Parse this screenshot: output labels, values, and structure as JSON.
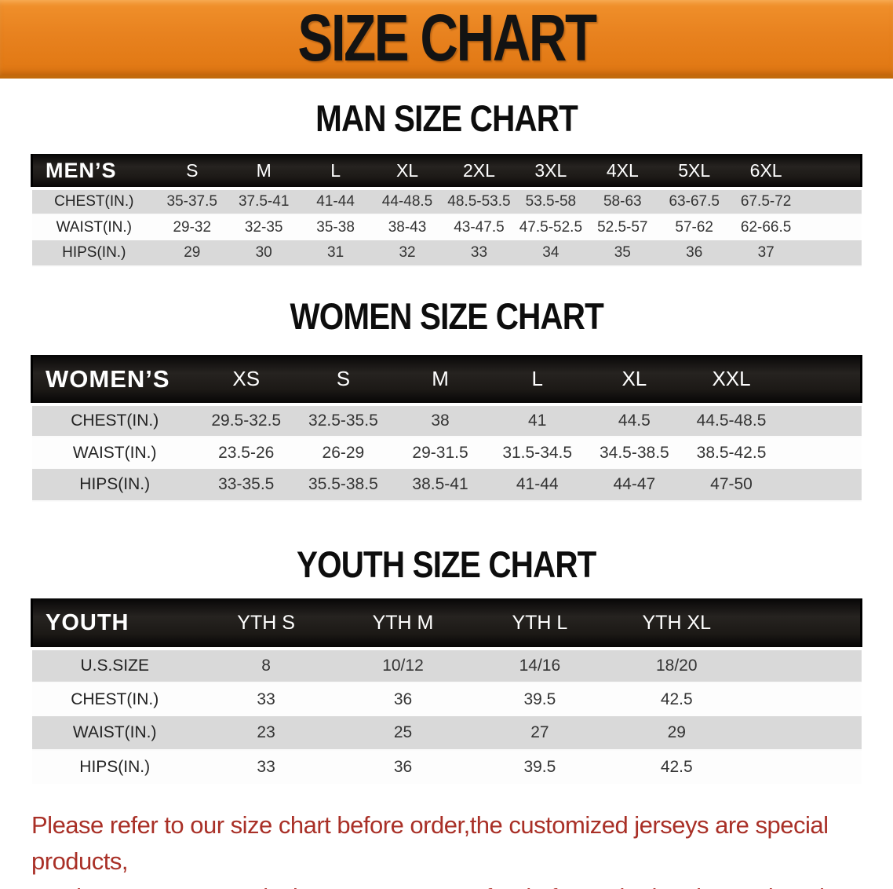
{
  "banner": {
    "title": "SIZE CHART",
    "bg_color": "#e8821f",
    "border_color": "#c36a0c",
    "text_color": "#131313"
  },
  "sections": [
    {
      "id": "men",
      "title": "MAN SIZE CHART",
      "corner_label": "MEN’S",
      "columns": [
        "S",
        "M",
        "L",
        "XL",
        "2XL",
        "3XL",
        "4XL",
        "5XL",
        "6XL"
      ],
      "rows": [
        {
          "label": "CHEST(IN.)",
          "values": [
            "35-37.5",
            "37.5-41",
            "41-44",
            "44-48.5",
            "48.5-53.5",
            "53.5-58",
            "58-63",
            "63-67.5",
            "67.5-72"
          ]
        },
        {
          "label": "WAIST(IN.)",
          "values": [
            "29-32",
            "32-35",
            "35-38",
            "38-43",
            "43-47.5",
            "47.5-52.5",
            "52.5-57",
            "57-62",
            "62-66.5"
          ]
        },
        {
          "label": "HIPS(IN.)",
          "values": [
            "29",
            "30",
            "31",
            "32",
            "33",
            "34",
            "35",
            "36",
            "37"
          ]
        }
      ]
    },
    {
      "id": "women",
      "title": "WOMEN SIZE CHART",
      "corner_label": "WOMEN’S",
      "columns": [
        "XS",
        "S",
        "M",
        "L",
        "XL",
        "XXL"
      ],
      "rows": [
        {
          "label": "CHEST(IN.)",
          "values": [
            "29.5-32.5",
            "32.5-35.5",
            "38",
            "41",
            "44.5",
            "44.5-48.5"
          ]
        },
        {
          "label": "WAIST(IN.)",
          "values": [
            "23.5-26",
            "26-29",
            "29-31.5",
            "31.5-34.5",
            "34.5-38.5",
            "38.5-42.5"
          ]
        },
        {
          "label": "HIPS(IN.)",
          "values": [
            "33-35.5",
            "35.5-38.5",
            "38.5-41",
            "41-44",
            "44-47",
            "47-50"
          ]
        }
      ]
    },
    {
      "id": "youth",
      "title": "YOUTH SIZE CHART",
      "corner_label": "YOUTH",
      "columns": [
        "YTH S",
        "YTH M",
        "YTH L",
        "YTH XL"
      ],
      "rows": [
        {
          "label": "U.S.SIZE",
          "values": [
            "8",
            "10/12",
            "14/16",
            "18/20"
          ]
        },
        {
          "label": "CHEST(IN.)",
          "values": [
            "33",
            "36",
            "39.5",
            "42.5"
          ]
        },
        {
          "label": "WAIST(IN.)",
          "values": [
            "23",
            "25",
            "27",
            "29"
          ]
        },
        {
          "label": "HIPS(IN.)",
          "values": [
            "33",
            "36",
            "39.5",
            "42.5"
          ]
        }
      ]
    }
  ],
  "note": {
    "line1": "Please refer to our size chart before order,the customized jerseys are special products,",
    "line2": "we don't accept cancel, change, teturn or refund after order has been placed!",
    "color": "#a93027"
  },
  "colors": {
    "row_gray": "#d9d9d9",
    "row_white": "#fdfdfd",
    "header_black": "#1c1916"
  }
}
